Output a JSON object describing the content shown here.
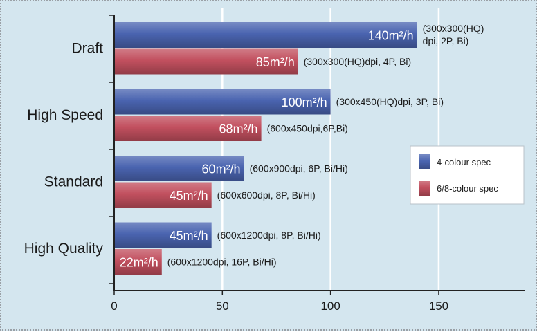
{
  "chart_data": {
    "type": "bar",
    "orientation": "horizontal",
    "categories": [
      "Draft",
      "High Speed",
      "Standard",
      "High Quality"
    ],
    "series": [
      {
        "name": "4-colour spec",
        "color": "#4a64b0",
        "values": [
          140,
          100,
          60,
          45
        ],
        "value_labels": [
          "140m²/h",
          "100m²/h",
          "60m²/h",
          "45m²/h"
        ],
        "spec_labels": [
          [
            "(300x300(HQ)",
            "dpi, 2P, Bi)"
          ],
          [
            "(300x450(HQ)dpi, 3P, Bi)"
          ],
          [
            "(600x900dpi, 6P, Bi/Hi)"
          ],
          [
            "(600x1200dpi, 8P, Bi/Hi)"
          ]
        ]
      },
      {
        "name": "6/8-colour spec",
        "color": "#c2505f",
        "values": [
          85,
          68,
          45,
          22
        ],
        "value_labels": [
          "85m²/h",
          "68m²/h",
          "45m²/h",
          "22m²/h"
        ],
        "spec_labels": [
          [
            "(300x300(HQ)dpi, 4P, Bi)"
          ],
          [
            "(600x450dpi,6P,Bi)"
          ],
          [
            "(600x600dpi, 8P, Bi/Hi)"
          ],
          [
            "(600x1200dpi, 16P, Bi/Hi)"
          ]
        ]
      }
    ],
    "x_ticks": [
      0,
      50,
      100,
      150
    ],
    "xlim": [
      0,
      190
    ],
    "grid": "vertical",
    "legend_position": "right"
  },
  "colors": {
    "background": "#d4e6ef",
    "gridline": "#ffffff",
    "axis": "#222222"
  }
}
